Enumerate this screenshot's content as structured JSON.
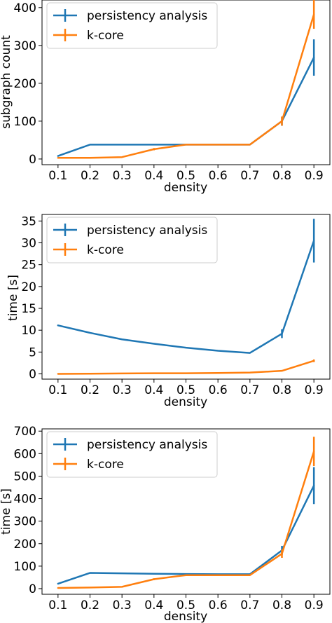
{
  "colors": {
    "persistency": "#1f77b4",
    "kcore": "#ff7f0e"
  },
  "chart_data": [
    {
      "type": "line",
      "xlabel": "density",
      "ylabel": "subgraph count",
      "xlim": [
        0.05,
        0.95
      ],
      "ylim": [
        -15,
        420
      ],
      "xticks": [
        "0.1",
        "0.2",
        "0.3",
        "0.4",
        "0.5",
        "0.6",
        "0.7",
        "0.8",
        "0.9"
      ],
      "yticks": [
        "0",
        "100",
        "200",
        "300",
        "400"
      ],
      "legend_position": "top-left",
      "grid": false,
      "x": [
        0.1,
        0.2,
        0.3,
        0.4,
        0.5,
        0.6,
        0.7,
        0.8,
        0.9
      ],
      "series": [
        {
          "name": "persistency analysis",
          "color": "#1f77b4",
          "values": [
            8,
            38,
            38,
            38,
            38,
            38,
            38,
            100,
            268
          ],
          "errors": [
            0,
            0,
            0,
            0,
            0,
            0,
            0,
            12,
            48
          ]
        },
        {
          "name": "k-core",
          "color": "#ff7f0e",
          "values": [
            3,
            3,
            5,
            26,
            38,
            38,
            38,
            100,
            382
          ],
          "errors": [
            0,
            0,
            0,
            3,
            0,
            0,
            0,
            12,
            38
          ]
        }
      ]
    },
    {
      "type": "line",
      "xlabel": "density",
      "ylabel": "time [s]",
      "xlim": [
        0.05,
        0.95
      ],
      "ylim": [
        -1.2,
        36.5
      ],
      "xticks": [
        "0.1",
        "0.2",
        "0.3",
        "0.4",
        "0.5",
        "0.6",
        "0.7",
        "0.8",
        "0.9"
      ],
      "yticks": [
        "0",
        "5",
        "10",
        "15",
        "20",
        "25",
        "30",
        "35"
      ],
      "legend_position": "top-left",
      "grid": false,
      "x": [
        0.1,
        0.2,
        0.3,
        0.4,
        0.5,
        0.6,
        0.7,
        0.8,
        0.9
      ],
      "series": [
        {
          "name": "persistency analysis",
          "color": "#1f77b4",
          "values": [
            11.1,
            9.4,
            7.9,
            6.9,
            6.0,
            5.3,
            4.8,
            9.2,
            30.5
          ],
          "errors": [
            0,
            0,
            0,
            0,
            0,
            0,
            0,
            1.0,
            5.0
          ]
        },
        {
          "name": "k-core",
          "color": "#ff7f0e",
          "values": [
            0.0,
            0.05,
            0.1,
            0.15,
            0.15,
            0.2,
            0.3,
            0.7,
            3.0
          ],
          "errors": [
            0,
            0,
            0,
            0,
            0,
            0,
            0,
            0,
            0.3
          ]
        }
      ]
    },
    {
      "type": "line",
      "xlabel": "density",
      "ylabel": "time [s]",
      "xlim": [
        0.05,
        0.95
      ],
      "ylim": [
        -25,
        710
      ],
      "xticks": [
        "0.1",
        "0.2",
        "0.3",
        "0.4",
        "0.5",
        "0.6",
        "0.7",
        "0.8",
        "0.9"
      ],
      "yticks": [
        "0",
        "100",
        "200",
        "300",
        "400",
        "500",
        "600",
        "700"
      ],
      "legend_position": "top-left",
      "grid": false,
      "x": [
        0.1,
        0.2,
        0.3,
        0.4,
        0.5,
        0.6,
        0.7,
        0.8,
        0.9
      ],
      "series": [
        {
          "name": "persistency analysis",
          "color": "#1f77b4",
          "values": [
            22,
            70,
            68,
            66,
            65,
            64,
            64,
            170,
            458
          ],
          "errors": [
            0,
            0,
            0,
            0,
            0,
            0,
            0,
            20,
            82
          ]
        },
        {
          "name": "k-core",
          "color": "#ff7f0e",
          "values": [
            3,
            5,
            8,
            42,
            60,
            60,
            60,
            155,
            610
          ],
          "errors": [
            0,
            0,
            0,
            4,
            0,
            0,
            0,
            18,
            65
          ]
        }
      ]
    }
  ]
}
